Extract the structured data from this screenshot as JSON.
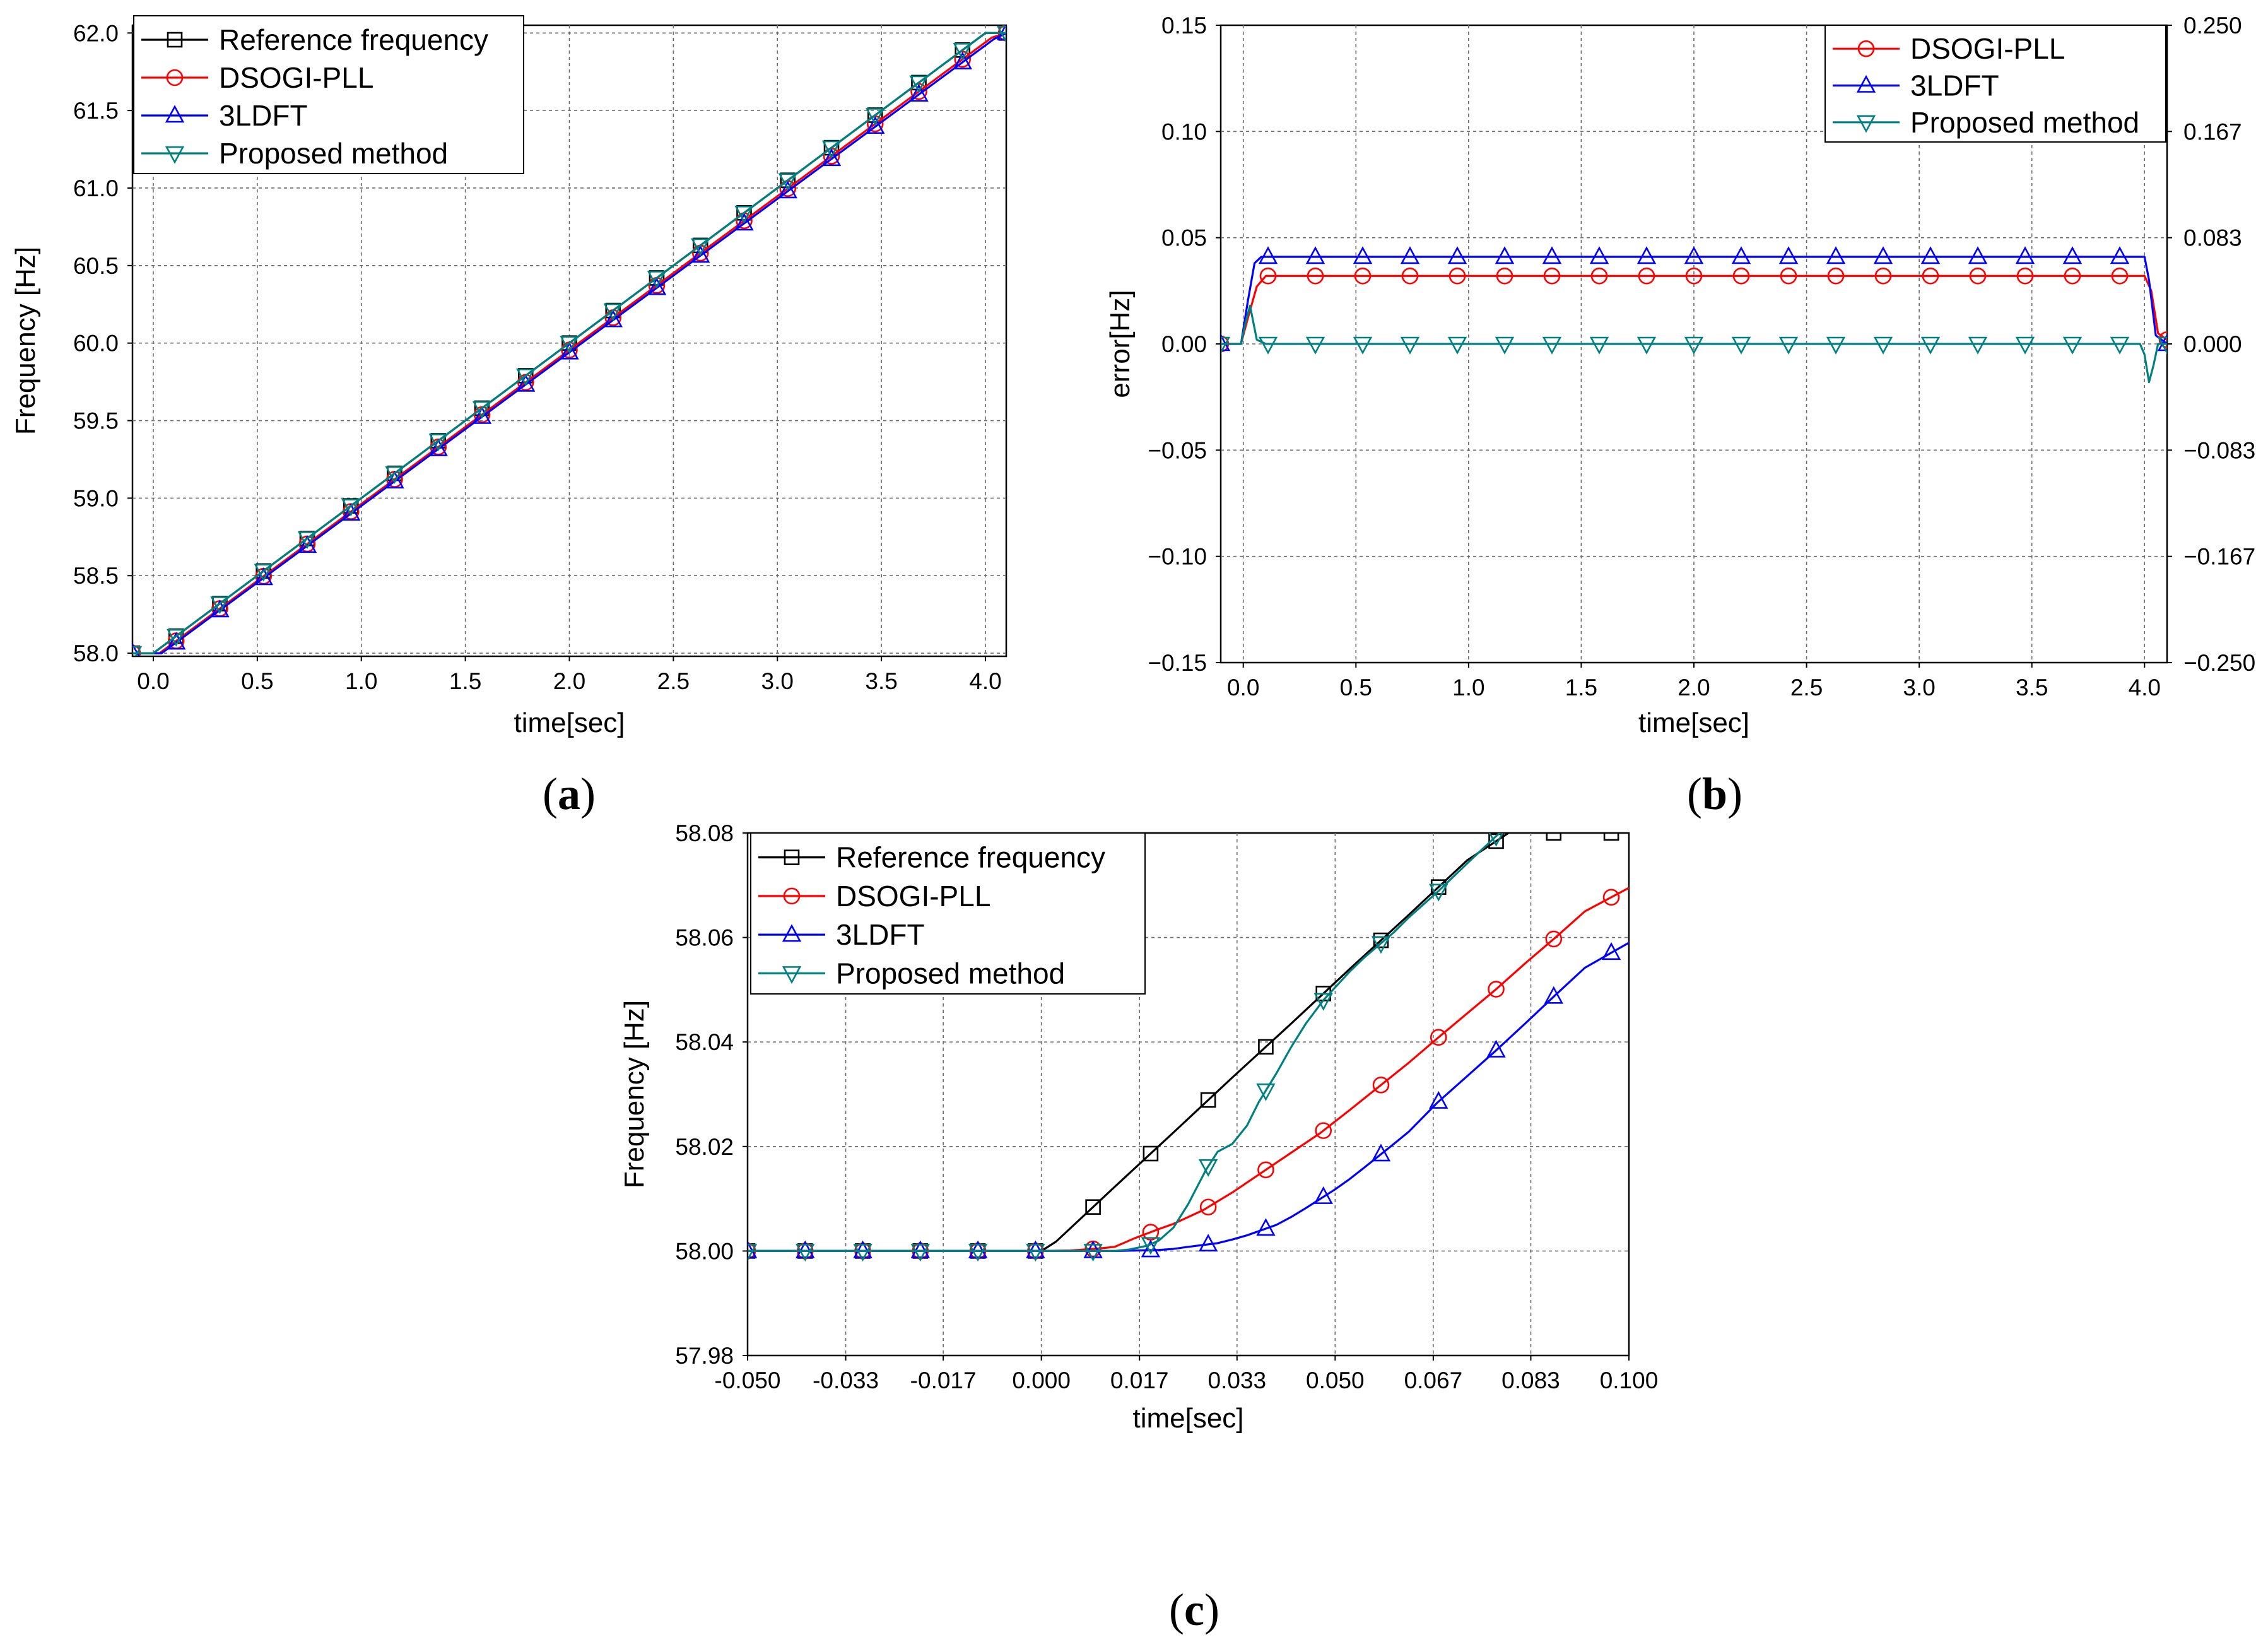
{
  "chart_data": [
    {
      "id": "a",
      "type": "line",
      "caption_letter": "a",
      "xlabel": "time[sec]",
      "ylabel": "Frequency [Hz]",
      "xlim": [
        -0.1,
        4.1
      ],
      "ylim": [
        57.98,
        62.05
      ],
      "xticks": [
        0.0,
        0.5,
        1.0,
        1.5,
        2.0,
        2.5,
        3.0,
        3.5,
        4.0
      ],
      "xtick_labels": [
        "0.0",
        "0.5",
        "1.0",
        "1.5",
        "2.0",
        "2.5",
        "3.0",
        "3.5",
        "4.0"
      ],
      "yticks": [
        58.0,
        58.5,
        59.0,
        59.5,
        60.0,
        60.5,
        61.0,
        61.5,
        62.0
      ],
      "ytick_labels": [
        "58.0",
        "58.5",
        "59.0",
        "59.5",
        "60.0",
        "60.5",
        "61.0",
        "61.5",
        "62.0"
      ],
      "legend": [
        "Reference frequency",
        "DSOGI-PLL",
        "3LDFT",
        "Proposed method"
      ],
      "series": [
        {
          "name": "Reference frequency",
          "color": "#000000",
          "marker": "square",
          "x": [
            -0.1,
            0.0,
            4.0,
            4.1
          ],
          "y": [
            58.0,
            58.0,
            62.0,
            62.0
          ]
        },
        {
          "name": "DSOGI-PLL",
          "color": "#ff0000",
          "marker": "circle",
          "x": [
            -0.1,
            0.03,
            4.03,
            4.1
          ],
          "y": [
            58.0,
            58.0,
            61.97,
            62.0
          ]
        },
        {
          "name": "3LDFT",
          "color": "#0000ff",
          "marker": "triangle-up",
          "x": [
            -0.1,
            0.04,
            4.04,
            4.1
          ],
          "y": [
            58.0,
            58.0,
            61.96,
            62.0
          ]
        },
        {
          "name": "Proposed method",
          "color": "#008080",
          "marker": "triangle-down",
          "x": [
            -0.1,
            0.0,
            4.0,
            4.1
          ],
          "y": [
            58.0,
            58.0,
            62.0,
            62.0
          ]
        }
      ]
    },
    {
      "id": "b",
      "type": "line",
      "caption_letter": "b",
      "xlabel": "time[sec]",
      "ylabel": "error[Hz]",
      "xlim": [
        -0.1,
        4.1
      ],
      "ylim": [
        -0.15,
        0.15
      ],
      "xticks": [
        0.0,
        0.5,
        1.0,
        1.5,
        2.0,
        2.5,
        3.0,
        3.5,
        4.0
      ],
      "xtick_labels": [
        "0.0",
        "0.5",
        "1.0",
        "1.5",
        "2.0",
        "2.5",
        "3.0",
        "3.5",
        "4.0"
      ],
      "yticks": [
        -0.15,
        -0.1,
        -0.05,
        0.0,
        0.05,
        0.1,
        0.15
      ],
      "ytick_labels": [
        "−0.15",
        "−0.10",
        "−0.05",
        "0.00",
        "0.05",
        "0.10",
        "0.15"
      ],
      "y2tick_labels": [
        "−0.250",
        "−0.167",
        "−0.083",
        "0.000",
        "0.083",
        "0.167",
        "0.250"
      ],
      "legend": [
        "DSOGI-PLL",
        "3LDFT",
        "Proposed method"
      ],
      "series": [
        {
          "name": "DSOGI-PLL",
          "color": "#ff0000",
          "marker": "circle",
          "x": [
            -0.1,
            -0.01,
            0.02,
            0.06,
            0.1,
            4.0,
            4.03,
            4.06,
            4.1
          ],
          "y": [
            0.0,
            0.0,
            0.012,
            0.027,
            0.032,
            0.032,
            0.025,
            0.005,
            0.002
          ]
        },
        {
          "name": "3LDFT",
          "color": "#0000ff",
          "marker": "triangle-up",
          "x": [
            -0.1,
            -0.01,
            0.02,
            0.05,
            0.08,
            4.0,
            4.02,
            4.05,
            4.1
          ],
          "y": [
            0.0,
            0.0,
            0.02,
            0.038,
            0.041,
            0.041,
            0.03,
            0.004,
            0.0
          ]
        },
        {
          "name": "Proposed method",
          "color": "#008080",
          "marker": "triangle-down",
          "x": [
            -0.1,
            -0.01,
            0.01,
            0.03,
            0.06,
            0.1,
            3.98,
            4.0,
            4.02,
            4.04,
            4.06,
            4.1
          ],
          "y": [
            0.0,
            0.0,
            0.01,
            0.018,
            0.002,
            0.0,
            0.0,
            -0.005,
            -0.018,
            -0.01,
            0.0,
            0.0
          ]
        }
      ]
    },
    {
      "id": "c",
      "type": "line",
      "caption_letter": "c",
      "xlabel": "time[sec]",
      "ylabel": "Frequency [Hz]",
      "xlim": [
        -0.05,
        0.1
      ],
      "ylim": [
        57.98,
        58.08
      ],
      "xticks": [
        -0.05,
        -0.0333,
        -0.0167,
        0.0,
        0.0167,
        0.0333,
        0.05,
        0.0667,
        0.0833,
        0.1
      ],
      "xtick_labels": [
        "-0.050",
        "-0.033",
        "-0.017",
        "0.000",
        "0.017",
        "0.033",
        "0.050",
        "0.067",
        "0.083",
        "0.100"
      ],
      "yticks": [
        57.98,
        58.0,
        58.02,
        58.04,
        58.06,
        58.08
      ],
      "ytick_labels": [
        "57.98",
        "58.00",
        "58.02",
        "58.04",
        "58.06",
        "58.08"
      ],
      "legend": [
        "Reference frequency",
        "DSOGI-PLL",
        "3LDFT",
        "Proposed method"
      ],
      "series": [
        {
          "name": "Reference frequency",
          "color": "#000000",
          "marker": "square",
          "x": [
            -0.05,
            0.0,
            0.0025,
            0.0125,
            0.0225,
            0.0325,
            0.0425,
            0.0525,
            0.0625,
            0.0725,
            0.0795
          ],
          "y": [
            58.0,
            58.0,
            58.0018,
            58.0123,
            58.0227,
            58.0332,
            58.0435,
            58.054,
            58.0643,
            58.0748,
            58.08
          ]
        },
        {
          "name": "DSOGI-PLL",
          "color": "#ff0000",
          "marker": "circle",
          "x": [
            -0.05,
            -0.04,
            -0.03,
            -0.02,
            -0.01,
            0.0,
            0.005,
            0.01,
            0.0125,
            0.016,
            0.02,
            0.0225,
            0.0275,
            0.0325,
            0.0375,
            0.0425,
            0.0475,
            0.0525,
            0.0575,
            0.0625,
            0.0675,
            0.0725,
            0.0775,
            0.0825,
            0.0875,
            0.0925,
            0.1
          ],
          "y": [
            58.0,
            58.0,
            58.0,
            58.0,
            58.0,
            58.0,
            58.0001,
            58.0005,
            58.0008,
            58.0025,
            58.0042,
            58.0052,
            58.0078,
            58.0112,
            58.015,
            58.0188,
            58.0226,
            58.027,
            58.0315,
            58.036,
            58.0408,
            58.0455,
            58.0502,
            58.0552,
            58.06,
            58.065,
            58.0695
          ]
        },
        {
          "name": "3LDFT",
          "color": "#0000ff",
          "marker": "triangle-up",
          "x": [
            -0.05,
            -0.04,
            -0.03,
            -0.02,
            -0.01,
            0.0,
            0.01,
            0.0125,
            0.02,
            0.0225,
            0.025,
            0.03,
            0.0325,
            0.035,
            0.04,
            0.0425,
            0.045,
            0.05,
            0.0525,
            0.055,
            0.06,
            0.0625,
            0.0675,
            0.0725,
            0.0775,
            0.0825,
            0.0875,
            0.0925,
            0.1
          ],
          "y": [
            58.0,
            58.0,
            58.0,
            58.0,
            58.0,
            58.0,
            58.0,
            58.0,
            58.0002,
            58.0004,
            58.0008,
            58.0015,
            58.0022,
            58.003,
            58.005,
            58.0065,
            58.0082,
            58.0118,
            58.0138,
            58.016,
            58.0205,
            58.0228,
            58.0285,
            58.0335,
            58.0385,
            58.0437,
            58.049,
            58.0542,
            58.059
          ]
        },
        {
          "name": "Proposed method",
          "color": "#008080",
          "marker": "triangle-down",
          "x": [
            -0.05,
            -0.04,
            -0.03,
            -0.02,
            -0.01,
            0.0,
            0.005,
            0.01,
            0.0125,
            0.015,
            0.018,
            0.02,
            0.0225,
            0.025,
            0.028,
            0.03,
            0.0325,
            0.035,
            0.037,
            0.04,
            0.0425,
            0.045,
            0.048,
            0.0525,
            0.055,
            0.06,
            0.0625,
            0.0675,
            0.0725,
            0.0775,
            0.08
          ],
          "y": [
            58.0,
            58.0,
            58.0,
            58.0,
            58.0,
            58.0,
            58.0,
            58.0,
            58.0,
            58.0003,
            58.001,
            58.002,
            58.0045,
            58.009,
            58.0155,
            58.019,
            58.0205,
            58.024,
            58.0285,
            58.034,
            58.039,
            58.0435,
            58.048,
            58.0535,
            58.0562,
            58.061,
            58.0638,
            58.0688,
            58.0742,
            58.0795,
            58.082
          ]
        }
      ]
    }
  ]
}
